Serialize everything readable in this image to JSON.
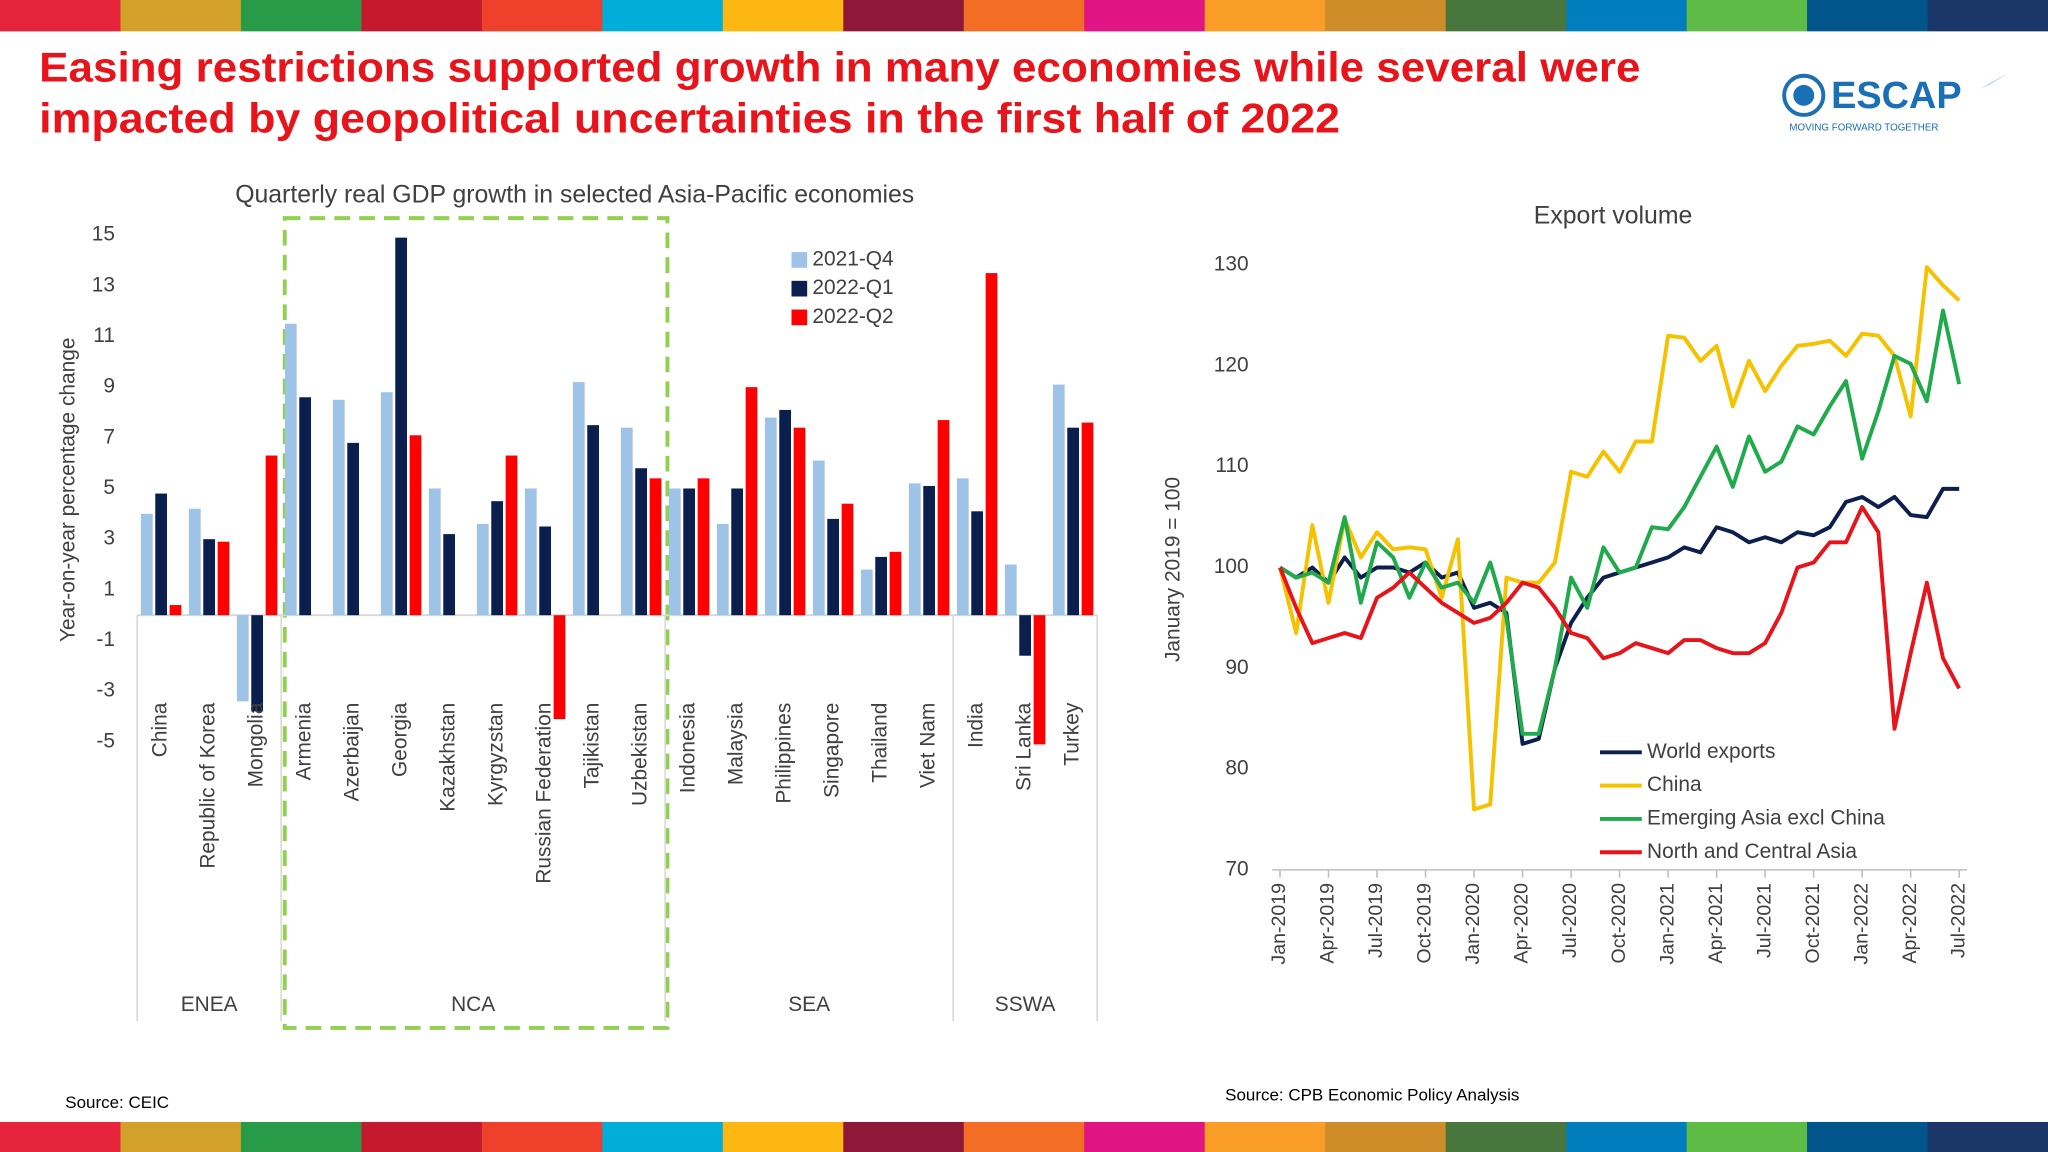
{
  "header": {
    "title_lines": [
      "Easing restrictions supported growth in many economies while several were",
      "impacted by geopolitical uncertainties in the first half of 2022"
    ],
    "logo": "ESCAP",
    "tagline": "MOVING FORWARD TOGETHER"
  },
  "sources": [
    "Source: CEIC",
    "Source: CPB Economic Policy Analysis"
  ],
  "chart_data": [
    {
      "type": "bar",
      "title": "Quarterly real GDP growth in selected Asia-Pacific economies",
      "y_label": "Year-on-year percentage change",
      "categories": [
        "China",
        "Republic of Korea",
        "Mongolia",
        "Armenia",
        "Azerbaijan",
        "Georgia",
        "Kazakhstan",
        "Kyrgyzstan",
        "Russian Federation",
        "Tajikistan",
        "Uzbekistan",
        "Indonesia",
        "Malaysia",
        "Philippines",
        "Singapore",
        "Thailand",
        "Viet Nam",
        "India",
        "Sri Lanka",
        "Turkey"
      ],
      "groups": [
        "ENEA",
        "NCA",
        "SEA",
        "SSWA"
      ],
      "series": [
        {
          "name": "2021-Q4",
          "color": "#9dc3e6",
          "values": [
            4.0,
            4.2,
            -3.4,
            11.5,
            8.5,
            8.8,
            5.0,
            3.6,
            5.0,
            9.2,
            7.4,
            5.0,
            3.6,
            7.8,
            6.1,
            1.8,
            5.2,
            5.4,
            2.0,
            9.1
          ]
        },
        {
          "name": "2022-Q1",
          "color": "#0b1f4f",
          "values": [
            4.8,
            3.0,
            -3.8,
            8.6,
            6.8,
            14.9,
            3.2,
            4.5,
            3.5,
            7.5,
            5.8,
            5.0,
            5.0,
            8.1,
            3.8,
            2.3,
            5.1,
            4.1,
            -1.6,
            7.4
          ]
        },
        {
          "name": "2022-Q2",
          "color": "#ff0000",
          "values": [
            0.4,
            2.9,
            6.3,
            null,
            null,
            7.1,
            null,
            6.3,
            -4.1,
            null,
            5.4,
            5.4,
            9.0,
            7.4,
            4.4,
            2.5,
            7.7,
            13.5,
            -5.1,
            7.6
          ]
        }
      ],
      "ylim": [
        -5,
        15
      ],
      "yticks": [
        -5,
        -3,
        -1,
        1,
        3,
        5,
        7,
        9,
        11,
        13,
        15
      ],
      "grid": false,
      "legend": "top-right"
    },
    {
      "type": "line",
      "title": "Export volume",
      "y_label": "January 2019 = 100",
      "categories": [
        "Jan-2019",
        null,
        null,
        "Apr-2019",
        null,
        null,
        "Jul-2019",
        null,
        null,
        "Oct-2019",
        null,
        null,
        "Jan-2020",
        null,
        null,
        "Apr-2020",
        null,
        null,
        "Jul-2020",
        null,
        null,
        "Oct-2020",
        null,
        null,
        "Jan-2021",
        null,
        null,
        "Apr-2021",
        null,
        null,
        "Jul-2021",
        null,
        null,
        "Oct-2021",
        null,
        null,
        "Jan-2022",
        null,
        null,
        "Apr-2022",
        null,
        null,
        "Jul-2022"
      ],
      "series": [
        {
          "name": "World exports",
          "color": "#0d1f4f",
          "values": [
            100,
            99,
            100,
            98.5,
            101,
            99,
            100,
            100,
            99.5,
            100.5,
            99,
            99.5,
            96,
            96.5,
            95.5,
            82.5,
            83,
            90,
            94.5,
            97,
            99,
            99.5,
            100,
            100.5,
            101,
            102,
            101.5,
            104,
            103.5,
            102.5,
            103,
            102.5,
            103.5,
            103.2,
            104,
            106.5,
            107,
            106,
            107,
            105.2,
            105,
            107.8,
            107.8
          ]
        },
        {
          "name": "China",
          "color": "#f5c200",
          "values": [
            100,
            93.5,
            104.2,
            96.5,
            104.8,
            101,
            103.5,
            101.8,
            102,
            101.8,
            97,
            102.8,
            76,
            76.5,
            99,
            98.5,
            98.5,
            100.5,
            109.5,
            109,
            111.5,
            109.5,
            112.5,
            112.5,
            123,
            122.8,
            120.5,
            122,
            116,
            120.5,
            117.5,
            120,
            122,
            122.2,
            122.5,
            121,
            123.2,
            123,
            121,
            115,
            129.8,
            128,
            126.5
          ]
        },
        {
          "name": "Emerging Asia excl China",
          "color": "#1faa4b",
          "values": [
            100,
            99,
            99.5,
            98.5,
            105,
            96.5,
            102.5,
            101,
            97,
            100.5,
            98,
            98.5,
            96.5,
            100.5,
            95,
            83.5,
            83.5,
            90,
            99,
            96,
            102,
            99.5,
            100,
            104,
            103.8,
            106,
            109,
            112,
            108,
            113,
            109.5,
            110.5,
            114,
            113.2,
            116,
            118.5,
            110.8,
            115.5,
            121,
            120.2,
            116.5,
            125.5,
            118.2
          ]
        },
        {
          "name": "North and Central Asia",
          "color": "#e8141b",
          "values": [
            100,
            96,
            92.5,
            93,
            93.5,
            93,
            97,
            98,
            99.5,
            98,
            96.5,
            95.5,
            94.5,
            95,
            96.5,
            98.5,
            98,
            96,
            93.5,
            93,
            91,
            91.5,
            92.5,
            92,
            91.5,
            92.8,
            92.8,
            92,
            91.5,
            91.5,
            92.5,
            95.5,
            100,
            100.5,
            102.5,
            102.5,
            106,
            103.5,
            84,
            91.5,
            98.5,
            91,
            88
          ]
        }
      ],
      "ylim": [
        70,
        130
      ],
      "yticks": [
        70,
        80,
        90,
        100,
        110,
        120,
        130
      ],
      "grid": false,
      "legend": "bottom-center"
    }
  ]
}
